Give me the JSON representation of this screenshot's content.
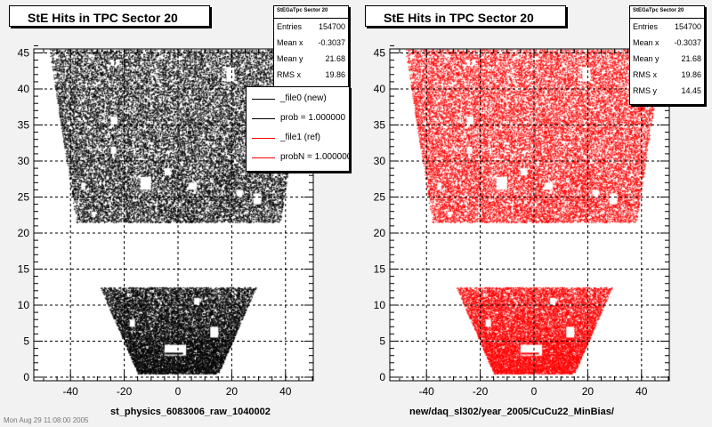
{
  "canvas_footer": "Mon Aug 29 11:08:00 2005",
  "chart_data": [
    {
      "type": "scatter",
      "title": "StE Hits in TPC Sector 20",
      "xlabel": "st_physics_6083006_raw_1040002",
      "ylabel": "",
      "xlim": [
        -52,
        52
      ],
      "ylim": [
        -1,
        46.5
      ],
      "x_ticks": [
        -40,
        -20,
        0,
        20,
        40
      ],
      "y_ticks": [
        0,
        5,
        10,
        15,
        20,
        25,
        30,
        35,
        40,
        45
      ],
      "grid": true,
      "point_color": "#000000",
      "regions": [
        {
          "name": "outer",
          "y_range": [
            21.5,
            45.5
          ],
          "x_half_width_bottom": 38,
          "x_half_width_top": 48
        },
        {
          "name": "inner",
          "y_range": [
            0.5,
            12.5
          ],
          "x_half_width_bottom": 15,
          "x_half_width_top": 29
        }
      ],
      "stats": {
        "header": "StEGaTpc Sector 20",
        "rows": [
          {
            "label": "Entries",
            "value": "154700"
          },
          {
            "label": "Mean x",
            "value": "-0.3037"
          },
          {
            "label": "Mean y",
            "value": "21.68"
          },
          {
            "label": "RMS x",
            "value": "19.86"
          }
        ]
      },
      "legend": {
        "position": "top-right",
        "entries": [
          {
            "label": "_file0 (new)",
            "color": "#000000"
          },
          {
            "label": "prob = 1.000000",
            "color": "#000000"
          },
          {
            "label": "_file1 (ref)",
            "color": "#ff0000"
          },
          {
            "label": "probN = 1.000000",
            "color": "#ff0000"
          }
        ]
      }
    },
    {
      "type": "scatter",
      "title": "StE Hits in TPC Sector 20",
      "xlabel": "new/daq_sl302/year_2005/CuCu22_MinBias/",
      "ylabel": "",
      "xlim": [
        -52,
        52
      ],
      "ylim": [
        -1,
        46.5
      ],
      "x_ticks": [
        -40,
        -20,
        0,
        20,
        40
      ],
      "y_ticks": [
        0,
        5,
        10,
        15,
        20,
        25,
        30,
        35,
        40,
        45
      ],
      "grid": true,
      "point_color": "#ff0000",
      "regions": [
        {
          "name": "outer",
          "y_range": [
            21.5,
            45.5
          ],
          "x_half_width_bottom": 38,
          "x_half_width_top": 48
        },
        {
          "name": "inner",
          "y_range": [
            0.5,
            12.5
          ],
          "x_half_width_bottom": 15,
          "x_half_width_top": 29
        }
      ],
      "stats": {
        "header": "StEGaTpc Sector 20",
        "rows": [
          {
            "label": "Entries",
            "value": "154700"
          },
          {
            "label": "Mean x",
            "value": "-0.3037"
          },
          {
            "label": "Mean y",
            "value": "21.68"
          },
          {
            "label": "RMS x",
            "value": "19.86"
          },
          {
            "label": "RMS y",
            "value": "14.45"
          }
        ]
      }
    }
  ]
}
